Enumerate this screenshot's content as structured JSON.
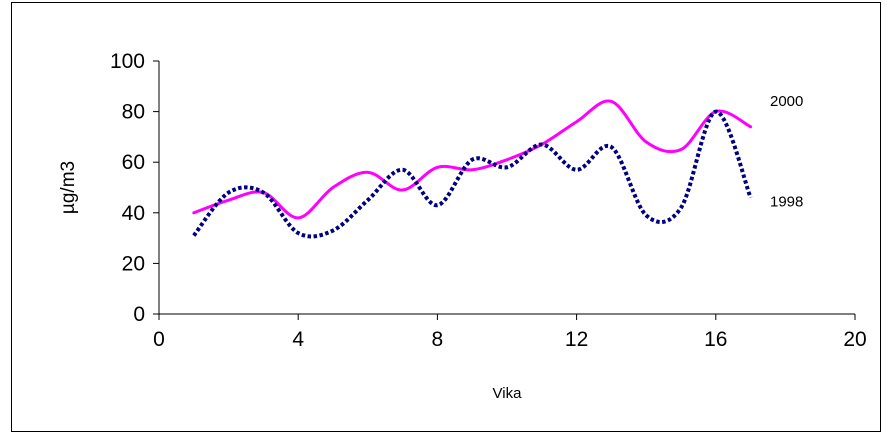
{
  "chart_data": {
    "type": "line",
    "title": "",
    "xlabel": "Vika",
    "ylabel": "µg/m3",
    "xlim": [
      0,
      20
    ],
    "ylim": [
      0,
      100
    ],
    "xticks": [
      0,
      4,
      8,
      12,
      16,
      20
    ],
    "yticks": [
      0,
      20,
      40,
      60,
      80,
      100
    ],
    "grid": false,
    "legend": "none",
    "series": [
      {
        "name": "2000",
        "color": "#ff00ff",
        "dash": "solid",
        "x": [
          1,
          2,
          3,
          4,
          5,
          6,
          7,
          8,
          9,
          10,
          11,
          12,
          13,
          14,
          15,
          16,
          17
        ],
        "y": [
          40,
          45,
          48,
          38,
          50,
          56,
          49,
          58,
          57,
          61,
          67,
          76,
          84,
          68,
          65,
          80,
          74
        ]
      },
      {
        "name": "1998",
        "color": "#000080",
        "dash": "dotted",
        "x": [
          1,
          2,
          3,
          4,
          5,
          6,
          7,
          8,
          9,
          10,
          11,
          12,
          13,
          14,
          15,
          16,
          17
        ],
        "y": [
          31,
          48,
          48,
          32,
          33,
          45,
          57,
          43,
          61,
          58,
          67,
          57,
          66,
          39,
          42,
          80,
          46
        ]
      }
    ]
  }
}
